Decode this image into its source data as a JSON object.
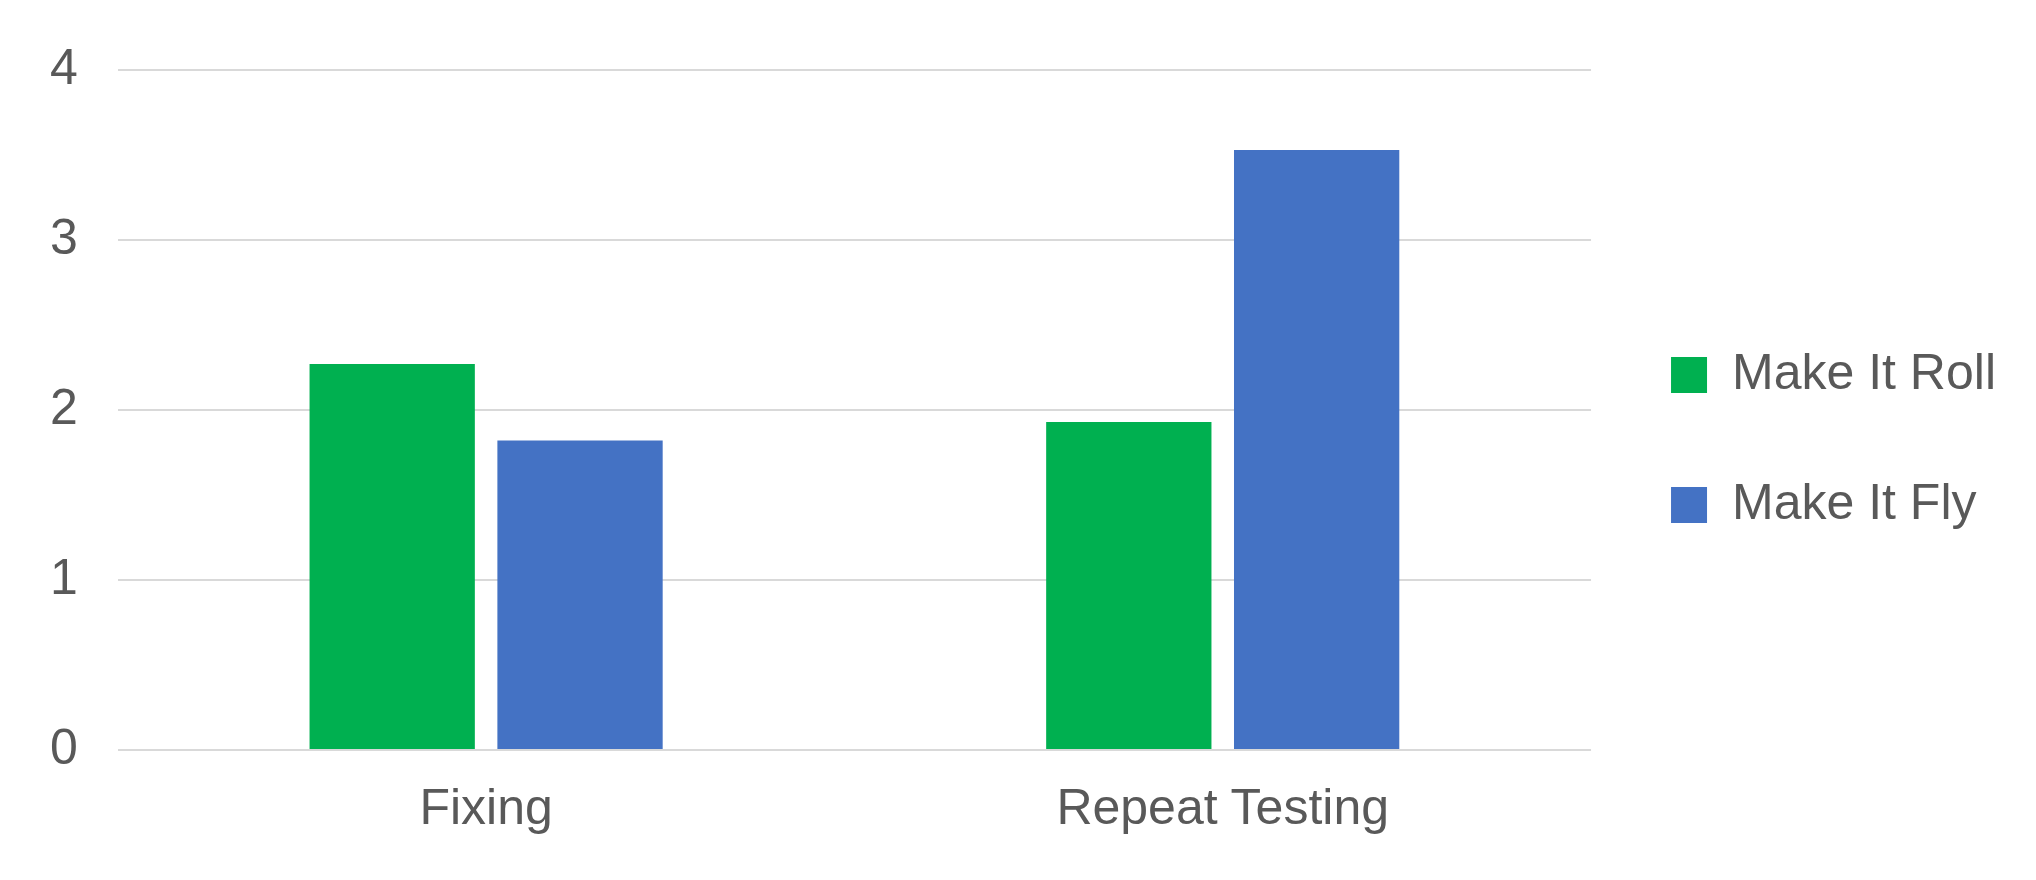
{
  "chart_data": {
    "type": "bar",
    "categories": [
      "Fixing",
      "Repeat Testing"
    ],
    "series": [
      {
        "name": "Make It Roll",
        "color": "#00b050",
        "values": [
          2.27,
          1.93
        ]
      },
      {
        "name": "Make It Fly",
        "color": "#4472c4",
        "values": [
          1.82,
          3.53
        ]
      }
    ],
    "ylim": [
      0,
      4
    ],
    "yticks": [
      0,
      1,
      2,
      3,
      4
    ],
    "grid": "y",
    "legend": "right"
  }
}
